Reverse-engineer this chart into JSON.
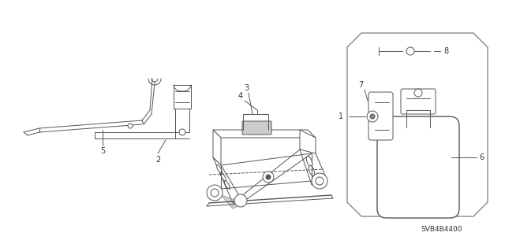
{
  "background_color": "#ffffff",
  "line_color": "#555555",
  "label_color": "#333333",
  "part_number": "SVB4B4400",
  "figsize": [
    6.4,
    3.19
  ],
  "dpi": 100
}
